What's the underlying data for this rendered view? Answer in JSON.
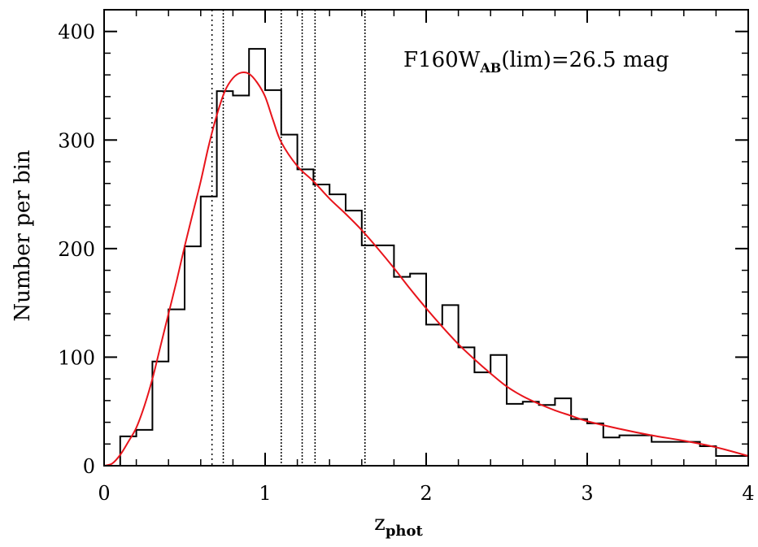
{
  "chart_data": {
    "type": "histogram",
    "xlabel": "z",
    "xlabel_sub": "phot",
    "ylabel": "Number per bin",
    "annotation": {
      "main": "F160W",
      "sub": "AB",
      "rest": "(lim)=26.5  mag",
      "placement": "top-right"
    },
    "xlim": [
      0,
      4
    ],
    "ylim": [
      0,
      420
    ],
    "xticks": [
      0,
      1,
      2,
      3,
      4
    ],
    "yticks": [
      0,
      100,
      200,
      300,
      400
    ],
    "grid": false,
    "histogram": {
      "bin_width": 0.1,
      "bins": [
        {
          "x0": 0.1,
          "x1": 0.2,
          "y": 27
        },
        {
          "x0": 0.2,
          "x1": 0.3,
          "y": 33
        },
        {
          "x0": 0.3,
          "x1": 0.4,
          "y": 96
        },
        {
          "x0": 0.4,
          "x1": 0.5,
          "y": 144
        },
        {
          "x0": 0.5,
          "x1": 0.6,
          "y": 202
        },
        {
          "x0": 0.6,
          "x1": 0.7,
          "y": 248
        },
        {
          "x0": 0.7,
          "x1": 0.8,
          "y": 345
        },
        {
          "x0": 0.8,
          "x1": 0.9,
          "y": 341
        },
        {
          "x0": 0.9,
          "x1": 1.0,
          "y": 384
        },
        {
          "x0": 1.0,
          "x1": 1.1,
          "y": 346
        },
        {
          "x0": 1.1,
          "x1": 1.2,
          "y": 305
        },
        {
          "x0": 1.2,
          "x1": 1.3,
          "y": 273
        },
        {
          "x0": 1.3,
          "x1": 1.4,
          "y": 259
        },
        {
          "x0": 1.4,
          "x1": 1.5,
          "y": 250
        },
        {
          "x0": 1.5,
          "x1": 1.6,
          "y": 235
        },
        {
          "x0": 1.6,
          "x1": 1.7,
          "y": 203
        },
        {
          "x0": 1.7,
          "x1": 1.8,
          "y": 203
        },
        {
          "x0": 1.8,
          "x1": 1.9,
          "y": 174
        },
        {
          "x0": 1.9,
          "x1": 2.0,
          "y": 177
        },
        {
          "x0": 2.0,
          "x1": 2.1,
          "y": 130
        },
        {
          "x0": 2.1,
          "x1": 2.2,
          "y": 148
        },
        {
          "x0": 2.2,
          "x1": 2.3,
          "y": 109
        },
        {
          "x0": 2.3,
          "x1": 2.4,
          "y": 86
        },
        {
          "x0": 2.4,
          "x1": 2.5,
          "y": 102
        },
        {
          "x0": 2.5,
          "x1": 2.6,
          "y": 57
        },
        {
          "x0": 2.6,
          "x1": 2.7,
          "y": 59
        },
        {
          "x0": 2.7,
          "x1": 2.8,
          "y": 56
        },
        {
          "x0": 2.8,
          "x1": 2.9,
          "y": 62
        },
        {
          "x0": 2.9,
          "x1": 3.0,
          "y": 43
        },
        {
          "x0": 3.0,
          "x1": 3.1,
          "y": 39
        },
        {
          "x0": 3.1,
          "x1": 3.2,
          "y": 26
        },
        {
          "x0": 3.2,
          "x1": 3.4,
          "y": 28
        },
        {
          "x0": 3.4,
          "x1": 3.7,
          "y": 22
        },
        {
          "x0": 3.7,
          "x1": 3.8,
          "y": 18
        },
        {
          "x0": 3.8,
          "x1": 3.9,
          "y": 9
        },
        {
          "x0": 3.9,
          "x1": 4.0,
          "y": 9
        }
      ]
    },
    "series": [
      {
        "type": "line",
        "color": "#e8141b",
        "x": [
          0.0,
          0.05,
          0.1,
          0.15,
          0.2,
          0.25,
          0.3,
          0.35,
          0.4,
          0.45,
          0.5,
          0.55,
          0.6,
          0.65,
          0.7,
          0.75,
          0.8,
          0.85,
          0.9,
          0.95,
          1.0,
          1.05,
          1.1,
          1.2,
          1.3,
          1.4,
          1.5,
          1.6,
          1.7,
          1.8,
          1.9,
          2.0,
          2.1,
          2.2,
          2.3,
          2.4,
          2.5,
          2.6,
          2.7,
          2.8,
          2.9,
          3.0,
          3.2,
          3.4,
          3.6,
          3.8,
          4.0
        ],
        "y": [
          0,
          2,
          10,
          22,
          35,
          55,
          80,
          110,
          140,
          170,
          202,
          232,
          262,
          295,
          323,
          345,
          357,
          362,
          361,
          353,
          340,
          318,
          298,
          276,
          262,
          246,
          232,
          217,
          200,
          182,
          163,
          145,
          128,
          112,
          98,
          85,
          73,
          64,
          57,
          51,
          46,
          41,
          34,
          28,
          23,
          17,
          9
        ]
      }
    ],
    "vertical_lines": [
      {
        "x": 0.67,
        "style": "dotted"
      },
      {
        "x": 0.74,
        "style": "dashed-fine"
      },
      {
        "x": 1.1,
        "style": "dashed-fine"
      },
      {
        "x": 1.23,
        "style": "dashed-fine"
      },
      {
        "x": 1.31,
        "style": "dashed-fine"
      },
      {
        "x": 1.62,
        "style": "dashed-fine"
      }
    ]
  }
}
